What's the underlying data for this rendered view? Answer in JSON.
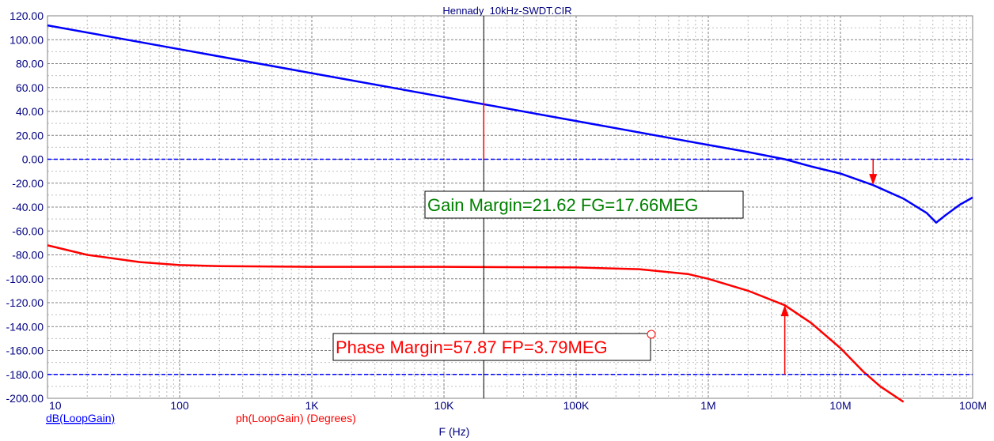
{
  "chart_data": {
    "type": "line",
    "title": "Hennady_10kHz-SWDT.CIR",
    "xlabel": "F (Hz)",
    "xscale": "log",
    "xlim": [
      10,
      100000000
    ],
    "ylim": [
      -200,
      120
    ],
    "grid": true,
    "x_tick_labels": [
      "10",
      "100",
      "1K",
      "10K",
      "100K",
      "1M",
      "10M",
      "100M"
    ],
    "y_tick_labels": [
      "120.00",
      "100.00",
      "80.00",
      "60.00",
      "40.00",
      "20.00",
      "0.00",
      "-20.00",
      "-40.00",
      "-60.00",
      "-80.00",
      "-100.00",
      "-120.00",
      "-140.00",
      "-160.00",
      "-180.00",
      "-200.00"
    ],
    "series": [
      {
        "name": "dB(LoopGain)",
        "color": "#0000ff",
        "x": [
          10,
          100,
          1000,
          10000,
          100000,
          1000000,
          2000000,
          3790000,
          6000000,
          10000000,
          17660000,
          30000000,
          45000000,
          53000000,
          62000000,
          80000000,
          100000000
        ],
        "y": [
          112,
          92,
          72,
          52,
          32,
          12,
          6,
          0,
          -6,
          -12,
          -21.6,
          -33,
          -45,
          -53,
          -47,
          -38,
          -32
        ]
      },
      {
        "name": "ph(LoopGain) (Degrees)",
        "color": "#ff0000",
        "x": [
          10,
          20,
          50,
          100,
          200,
          1000,
          10000,
          100000,
          300000,
          700000,
          1000000,
          2000000,
          3790000,
          6000000,
          10000000,
          15000000,
          20000000,
          30000000
        ],
        "y": [
          -72,
          -80,
          -86,
          -88.5,
          -89.4,
          -90,
          -90,
          -90.5,
          -92,
          -96,
          -100,
          -110,
          -122.1,
          -137,
          -158,
          -178,
          -190,
          -203
        ]
      },
      {
        "name": "0 dB reference",
        "color": "#0000ff",
        "style": "dashed",
        "x": [
          10,
          100000000
        ],
        "y": [
          0,
          0
        ]
      },
      {
        "name": "-180 deg reference",
        "color": "#0000ff",
        "style": "dashed",
        "x": [
          10,
          100000000
        ],
        "y": [
          -180,
          -180
        ]
      }
    ],
    "markers": [
      {
        "type": "arrow-down",
        "color": "#ff0000",
        "x": 17660000,
        "y_from": 0,
        "y_to": -21.6
      },
      {
        "type": "arrow-up",
        "color": "#ff0000",
        "x": 3790000,
        "y_from": -180,
        "y_to": -122.1
      },
      {
        "type": "cursor-line",
        "color": "#000000",
        "x": 20000
      },
      {
        "type": "cursor-stub",
        "color": "#ff0000",
        "x": 20000,
        "y_from": 0,
        "y_to": 48
      }
    ],
    "annotations": [
      {
        "text": "Gain Margin=21.62 FG=17.66MEG",
        "color": "#008000"
      },
      {
        "text": "Phase Margin=57.87 FP=3.79MEG",
        "color": "#ff0000"
      }
    ],
    "legend_labels": [
      {
        "text": "dB(LoopGain)",
        "color": "#0000ff"
      },
      {
        "text": "ph(LoopGain) (Degrees)",
        "color": "#ff0000"
      }
    ]
  }
}
